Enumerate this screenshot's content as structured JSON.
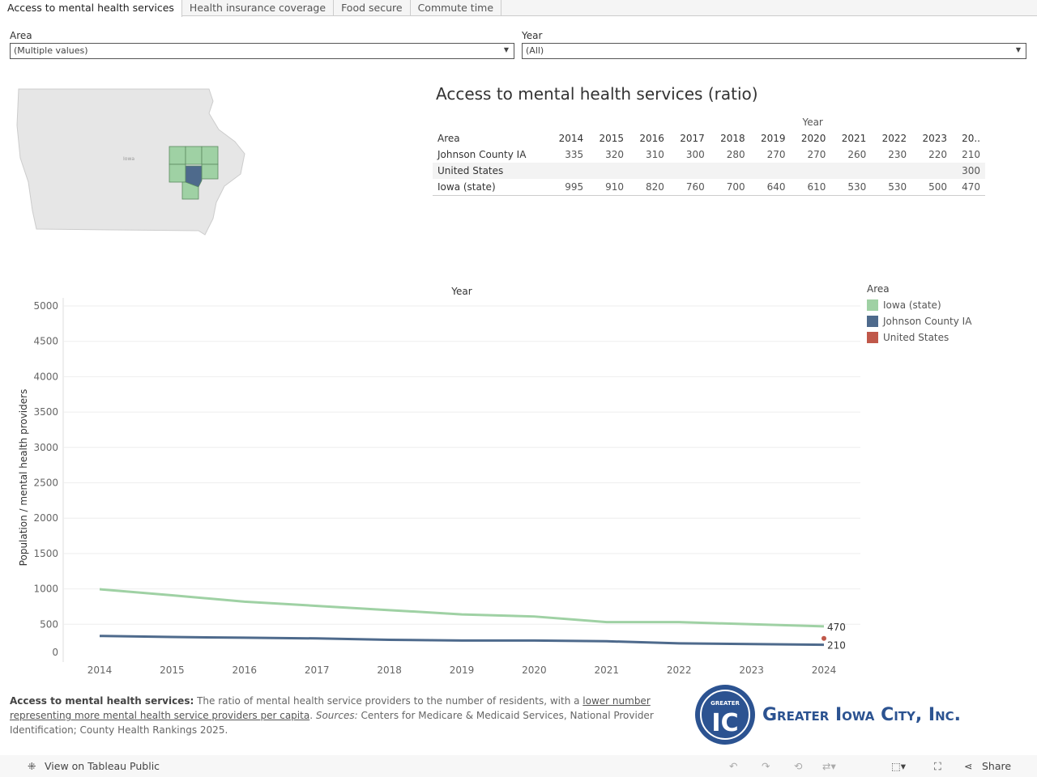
{
  "tabs": [
    "Access to mental health services",
    "Health insurance coverage",
    "Food secure",
    "Commute time"
  ],
  "filters": {
    "area_label": "Area",
    "area_value": "(Multiple values)",
    "year_label": "Year",
    "year_value": "(All)"
  },
  "map": {
    "state_label": "Iowa",
    "colors": {
      "selected": "#4e6a8c",
      "highlight": "#9fd1a4",
      "base": "#e6e6e6"
    }
  },
  "title": "Access to mental health services (ratio)",
  "table": {
    "year_header": "Year",
    "area_header": "Area",
    "years": [
      "2014",
      "2015",
      "2016",
      "2017",
      "2018",
      "2019",
      "2020",
      "2021",
      "2022",
      "2023",
      "20.."
    ],
    "rows": [
      {
        "area": "Johnson County IA",
        "values": [
          "335",
          "320",
          "310",
          "300",
          "280",
          "270",
          "270",
          "260",
          "230",
          "220",
          "210"
        ]
      },
      {
        "area": "United States",
        "values": [
          "",
          "",
          "",
          "",
          "",
          "",
          "",
          "",
          "",
          "",
          "300"
        ]
      },
      {
        "area": "Iowa (state)",
        "values": [
          "995",
          "910",
          "820",
          "760",
          "700",
          "640",
          "610",
          "530",
          "530",
          "500",
          "470"
        ]
      }
    ]
  },
  "chart_data": {
    "type": "line",
    "title": "Year",
    "xlabel": "Year",
    "ylabel": "Population / mental health providers",
    "ylim": [
      0,
      5000
    ],
    "yticks": [
      "0",
      "500",
      "1000",
      "1500",
      "2000",
      "2500",
      "3000",
      "3500",
      "4000",
      "4500",
      "5000"
    ],
    "x": [
      "2014",
      "2015",
      "2016",
      "2017",
      "2018",
      "2019",
      "2020",
      "2021",
      "2022",
      "2023",
      "2024"
    ],
    "series": [
      {
        "name": "Iowa (state)",
        "color": "#9fd1a4",
        "values": [
          995,
          910,
          820,
          760,
          700,
          640,
          610,
          530,
          530,
          500,
          470
        ],
        "end_label": "470"
      },
      {
        "name": "Johnson County IA",
        "color": "#4e6a8c",
        "values": [
          335,
          320,
          310,
          300,
          280,
          270,
          270,
          260,
          230,
          220,
          210
        ],
        "end_label": "210"
      },
      {
        "name": "United States",
        "color": "#c0584a",
        "values": [
          null,
          null,
          null,
          null,
          null,
          null,
          null,
          null,
          null,
          null,
          300
        ]
      }
    ],
    "legend_title": "Area",
    "legend_position": "right"
  },
  "caption": {
    "bold": "Access to mental health services:",
    "text1": " The ratio of mental health service providers to the number of residents, with a ",
    "link": "lower number representing more mental health service providers per capita",
    "text2": ". ",
    "sources_label": "Sources:",
    "text3": " Centers for Medicare & Medicaid Services, National Provider Identification; County Health Rankings 2025."
  },
  "logo": {
    "text": "Greater Iowa City, Inc.",
    "badge": "GREATER"
  },
  "footer": {
    "view": "View on Tableau Public",
    "share": "Share"
  }
}
